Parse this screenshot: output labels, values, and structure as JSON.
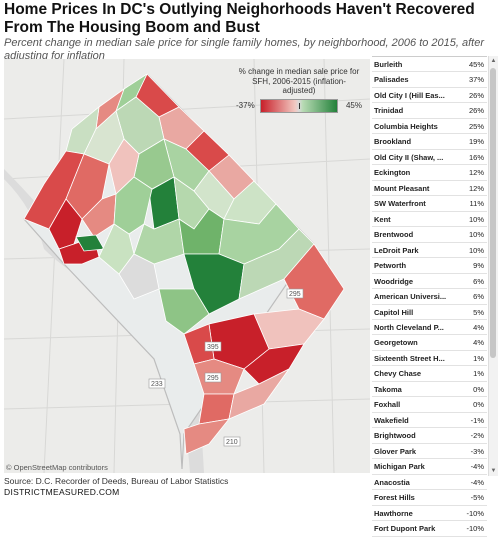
{
  "title": "Home Prices In DC's Outlying Neighorhoods Haven't Recovered From The Housing Boom and Bust",
  "subtitle": "Percent change in median sale price for single family homes, by neighborhood, 2006 to 2015, after adjusting for inflation",
  "legend": {
    "title": "% change in median sale price for SFH, 2006-2015 (inflation-adjusted)",
    "min_label": "-37%",
    "max_label": "45%",
    "low_color": "#c8202a",
    "high_color": "#23813a"
  },
  "map": {
    "credit": "© OpenStreetMap contributors",
    "route_labels": [
      "295",
      "395",
      "295",
      "233",
      "210"
    ]
  },
  "table": {
    "rows": [
      {
        "name": "Burleith",
        "value": "45%"
      },
      {
        "name": "Palisades",
        "value": "37%"
      },
      {
        "name": "Old City I (Hill Eas...",
        "value": "26%"
      },
      {
        "name": "Trinidad",
        "value": "26%"
      },
      {
        "name": "Columbia Heights",
        "value": "25%"
      },
      {
        "name": "Brookland",
        "value": "19%"
      },
      {
        "name": "Old City II (Shaw, ...",
        "value": "16%"
      },
      {
        "name": "Eckington",
        "value": "12%"
      },
      {
        "name": "Mount Pleasant",
        "value": "12%"
      },
      {
        "name": "SW Waterfront",
        "value": "11%"
      },
      {
        "name": "Kent",
        "value": "10%"
      },
      {
        "name": "Brentwood",
        "value": "10%"
      },
      {
        "name": "LeDroit Park",
        "value": "10%"
      },
      {
        "name": "Petworth",
        "value": "9%"
      },
      {
        "name": "Woodridge",
        "value": "6%"
      },
      {
        "name": "American Universi...",
        "value": "6%"
      },
      {
        "name": "Capitol Hill",
        "value": "5%"
      },
      {
        "name": "North Cleveland P...",
        "value": "4%"
      },
      {
        "name": "Georgetown",
        "value": "4%"
      },
      {
        "name": "Sixteenth Street H...",
        "value": "1%"
      },
      {
        "name": "Chevy Chase",
        "value": "1%"
      },
      {
        "name": "Takoma",
        "value": "0%"
      },
      {
        "name": "Foxhall",
        "value": "0%"
      },
      {
        "name": "Wakefield",
        "value": "-1%"
      },
      {
        "name": "Brightwood",
        "value": "-2%"
      },
      {
        "name": "Glover Park",
        "value": "-3%"
      },
      {
        "name": "Michigan Park",
        "value": "-4%"
      },
      {
        "name": "Anacostia",
        "value": "-4%"
      },
      {
        "name": "Forest Hills",
        "value": "-5%"
      },
      {
        "name": "Hawthorne",
        "value": "-10%"
      },
      {
        "name": "Fort Dupont Park",
        "value": "-10%"
      }
    ]
  },
  "source": "Source: D.C. Recorder of Deeds, Bureau of Labor Statistics",
  "site": "DISTRICTMEASURED.COM"
}
